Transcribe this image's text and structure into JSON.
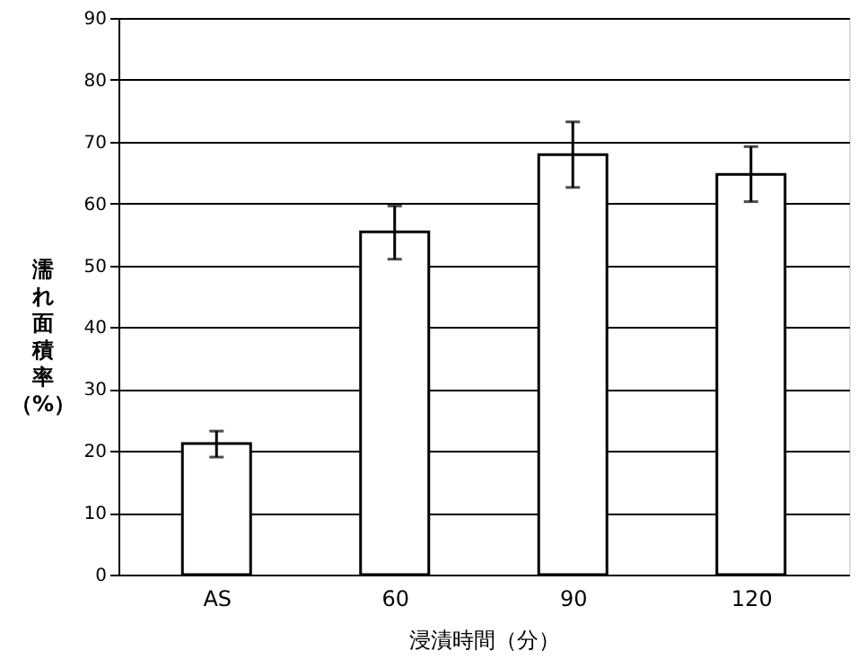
{
  "chart_data": {
    "type": "bar",
    "xlabel": "浸漬時間（分）",
    "ylabel": "濡れ面積率（%）",
    "categories": [
      "AS",
      "60",
      "90",
      "120"
    ],
    "values": [
      21.2,
      55.4,
      67.9,
      64.7
    ],
    "errors": [
      [
        19.0,
        23.2
      ],
      [
        51.0,
        59.6
      ],
      [
        62.6,
        73.2
      ],
      [
        60.3,
        69.2
      ]
    ],
    "color": "#ffffff",
    "ylim": [
      0,
      90
    ],
    "yticks": [
      0,
      10,
      20,
      30,
      40,
      50,
      60,
      70,
      80,
      90
    ],
    "grid": "y"
  }
}
